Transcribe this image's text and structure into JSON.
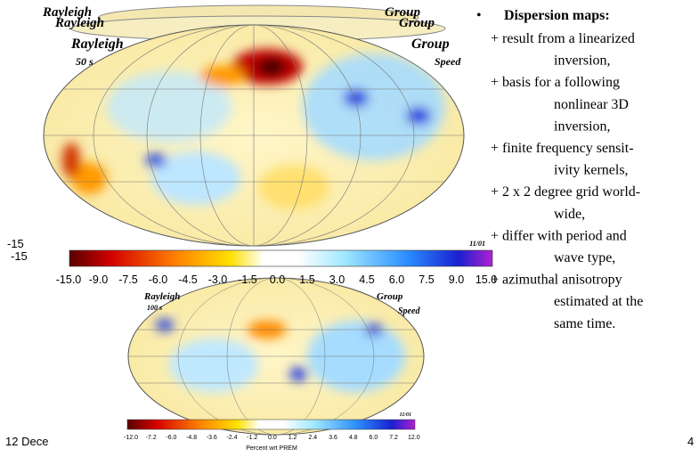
{
  "slide": {
    "ghost_labels": [
      "Rayleigh",
      "Rayleigh",
      "Group",
      "Group"
    ],
    "left_fragments": [
      "-15",
      "-15"
    ],
    "map1": {
      "labels": [
        "Rayleigh",
        "50 s",
        "Group",
        "Speed"
      ],
      "date": "11/01",
      "ticks": [
        "-15.0",
        "-9.0",
        "-7.5",
        "-6.0",
        "-4.5",
        "-3.0",
        "-1.5",
        "0.0",
        "1.5",
        "3.0",
        "4.5",
        "6.0",
        "7.5",
        "9.0",
        "15.0"
      ]
    },
    "map2": {
      "labels": [
        "Rayleigh",
        "100 s",
        "Group",
        "Speed"
      ],
      "date": "11/01",
      "ticks": [
        "-12.0",
        "-7.2",
        "-6.0",
        "-4.8",
        "-3.6",
        "-2.4",
        "-1.2",
        "0.0",
        "1.2",
        "2.4",
        "3.6",
        "4.8",
        "6.0",
        "7.2",
        "12.0"
      ],
      "axis_label": "Percent wrt PREM"
    },
    "bullet": "•",
    "heading": "Dispersion maps:",
    "items": [
      [
        "+ result from a linearized",
        "inversion,"
      ],
      [
        "+ basis for a following",
        "nonlinear 3D",
        "inversion,"
      ],
      [
        "+ finite frequency sensit-",
        "ivity kernels,"
      ],
      [
        "+ 2 x 2 degree grid world-",
        "wide,"
      ],
      [
        "+ differ with period and",
        "wave type,"
      ],
      [
        "+ azimuthal anisotropy",
        "estimated at the",
        "same time."
      ]
    ],
    "footer_left": "12 Dece",
    "page_number": "4"
  }
}
